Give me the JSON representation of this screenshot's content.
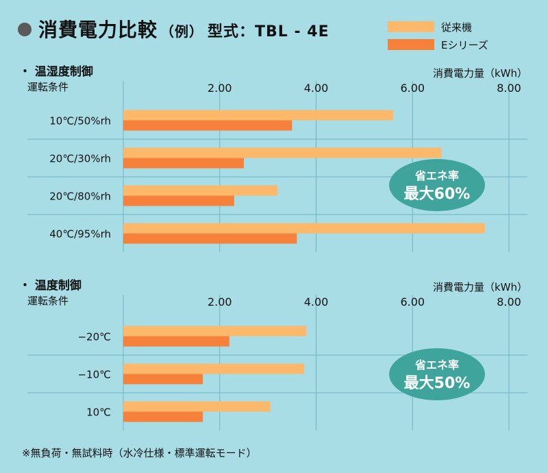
{
  "header": {
    "title": "消費電力比較",
    "example": "（例）",
    "model": "型式：TBL - 4E"
  },
  "legend": [
    {
      "name": "従来機",
      "color": "#fdb96b"
    },
    {
      "name": "Eシリーズ",
      "color": "#f5813a"
    }
  ],
  "sections": [
    {
      "title": "温湿度制御",
      "condition_label": "運転条件",
      "unit_label": "消費電力量（kWh）",
      "badge": {
        "line1": "省エネ率",
        "line2": "最大60%"
      }
    },
    {
      "title": "温度制御",
      "condition_label": "運転条件",
      "unit_label": "消費電力量（kWh）",
      "badge": {
        "line1": "省エネ率",
        "line2": "最大50%"
      }
    }
  ],
  "chart_data": [
    {
      "type": "bar",
      "orientation": "horizontal",
      "title": "温湿度制御",
      "xlabel": "消費電力量（kWh）",
      "ylabel": "運転条件",
      "categories": [
        "10℃/50%rh",
        "20℃/30%rh",
        "20℃/80%rh",
        "40℃/95%rh"
      ],
      "series": [
        {
          "name": "従来機",
          "values": [
            5.6,
            6.6,
            3.2,
            7.5
          ]
        },
        {
          "name": "Eシリーズ",
          "values": [
            3.5,
            2.5,
            2.3,
            3.6
          ]
        }
      ],
      "xlim": [
        0,
        8
      ],
      "xticks": [
        "2.00",
        "4.00",
        "6.00",
        "8.00"
      ],
      "grid": true
    },
    {
      "type": "bar",
      "orientation": "horizontal",
      "title": "温度制御",
      "xlabel": "消費電力量（kWh）",
      "ylabel": "運転条件",
      "categories": [
        "−20℃",
        "−10℃",
        "10℃"
      ],
      "series": [
        {
          "name": "従来機",
          "values": [
            3.8,
            3.75,
            3.05
          ]
        },
        {
          "name": "Eシリーズ",
          "values": [
            2.2,
            1.65,
            1.65
          ]
        }
      ],
      "xlim": [
        0,
        8
      ],
      "xticks": [
        "2.00",
        "4.00",
        "6.00",
        "8.00"
      ],
      "grid": true
    }
  ],
  "footnote": "※無負荷・無試料時（水冷仕様・標準運転モード）"
}
